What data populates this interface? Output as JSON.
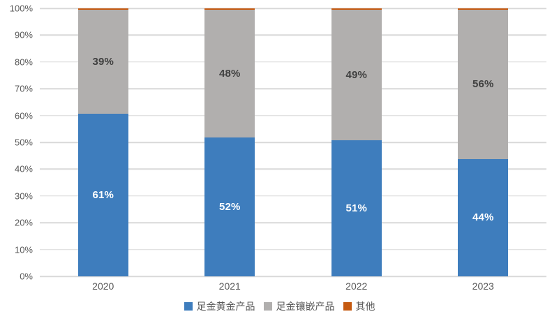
{
  "chart_data": {
    "type": "bar",
    "subtype": "stacked-100-percent",
    "categories": [
      "2020",
      "2021",
      "2022",
      "2023"
    ],
    "series": [
      {
        "name": "足金黄金产品",
        "color": "#3E7DBD",
        "values": [
          61,
          52,
          51,
          44
        ],
        "data_labels": [
          "61%",
          "52%",
          "51%",
          "44%"
        ],
        "label_color": "#FFFFFF",
        "show_labels": true
      },
      {
        "name": "足金镶嵌产品",
        "color": "#B1AFAE",
        "values": [
          39,
          48,
          49,
          56
        ],
        "data_labels": [
          "39%",
          "48%",
          "49%",
          "56%"
        ],
        "label_color": "#404040",
        "show_labels": true
      },
      {
        "name": "其他",
        "color": "#C55A11",
        "values": [
          0.5,
          0.5,
          0.5,
          0.5
        ],
        "data_labels": [],
        "label_color": "#404040",
        "show_labels": false
      }
    ],
    "y_axis": {
      "min": 0,
      "max": 100,
      "step": 10,
      "tick_labels": [
        "0%",
        "10%",
        "20%",
        "30%",
        "40%",
        "50%",
        "60%",
        "70%",
        "80%",
        "90%",
        "100%"
      ]
    },
    "x_axis": {
      "tick_labels": [
        "2020",
        "2021",
        "2022",
        "2023"
      ]
    },
    "grid": true,
    "legend": {
      "position": "bottom",
      "entries": [
        "足金黄金产品",
        "足金镶嵌产品",
        "其他"
      ]
    },
    "style": {
      "grid_color": "#D9D9D9",
      "axis_text_color": "#595959",
      "background": "#FFFFFF"
    }
  }
}
